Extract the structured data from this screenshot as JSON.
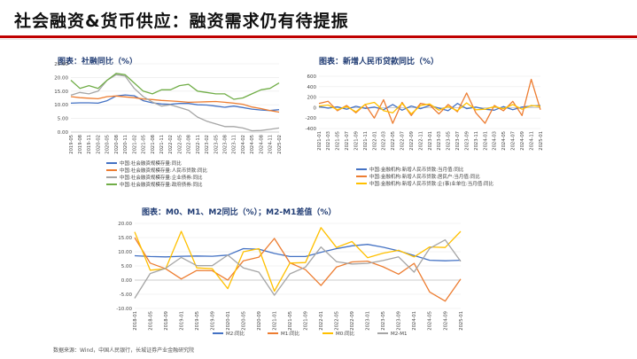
{
  "title": "社会融资&货币供应：融资需求仍有待提振",
  "source": "数据来源：Wind，中国人民银行，长城证券产业金融研究院",
  "colors": {
    "blue": "#4472c4",
    "orange": "#ed7d31",
    "gray": "#a5a5a5",
    "yellow": "#ffc000",
    "green": "#70ad47",
    "red": "#c00000"
  },
  "chart_data": [
    {
      "type": "line",
      "title": "图表：社融同比（%）",
      "ylim": [
        0,
        25
      ],
      "yticks": [
        "0.00",
        "5.00",
        "10.00",
        "15.00",
        "20.00",
        "25.00"
      ],
      "x_tick_labels": [
        "2019-05",
        "2019-08",
        "2019-11",
        "2020-02",
        "2020-05",
        "2020-08",
        "2020-11",
        "2021-02",
        "2021-05",
        "2021-08",
        "2021-11",
        "2022-02",
        "2022-05",
        "2022-08",
        "2022-11",
        "2023-02",
        "2023-05",
        "2023-08",
        "2023-11",
        "2024-02",
        "2024-05",
        "2024-08",
        "2024-11",
        "2025-02"
      ],
      "series": [
        {
          "name": "中国:社会融资规模存量:同比",
          "color": "#4472c4",
          "values": [
            10.6,
            10.7,
            10.7,
            10.6,
            11.5,
            13.2,
            13.6,
            13.3,
            11.5,
            10.7,
            10.3,
            10.2,
            10.5,
            10.5,
            10.0,
            9.9,
            9.5,
            9.1,
            9.5,
            9.0,
            8.4,
            8.1,
            7.9,
            8.2
          ]
        },
        {
          "name": "中国:社会融资规模存量:人民币贷款:同比",
          "color": "#ed7d31",
          "values": [
            13.0,
            12.6,
            12.4,
            12.2,
            13.0,
            13.2,
            12.9,
            12.6,
            12.1,
            11.9,
            11.6,
            11.4,
            11.2,
            10.9,
            11.0,
            11.1,
            11.2,
            10.9,
            10.6,
            10.2,
            9.2,
            8.6,
            7.9,
            7.3
          ]
        },
        {
          "name": "中国:社会融资规模存量:企业债券:同比",
          "color": "#a5a5a5",
          "values": [
            13.5,
            14.5,
            14.0,
            15.0,
            19.0,
            21.0,
            20.5,
            16.0,
            13.0,
            11.0,
            9.5,
            10.0,
            9.0,
            8.0,
            5.5,
            4.0,
            3.0,
            2.0,
            2.0,
            1.5,
            0.5,
            0.6,
            1.0,
            1.5
          ]
        },
        {
          "name": "中国:社会融资规模存量:政府债券:同比",
          "color": "#70ad47",
          "values": [
            19.0,
            16.0,
            17.0,
            16.0,
            19.0,
            21.5,
            21.0,
            18.0,
            15.0,
            14.0,
            15.5,
            15.5,
            17.0,
            17.5,
            15.0,
            14.5,
            14.0,
            14.0,
            12.0,
            12.5,
            14.0,
            15.5,
            16.0,
            18.0
          ]
        }
      ]
    },
    {
      "type": "line",
      "title": "图表：新增人民币贷款同比（%）",
      "ylim": [
        -400,
        600
      ],
      "yticks": [
        "-400",
        "-200",
        "0",
        "200",
        "400",
        "600"
      ],
      "x_tick_labels": [
        "2021-01",
        "2021-03",
        "2021-05",
        "2021-07",
        "2021-09",
        "2021-11",
        "2022-01",
        "2022-03",
        "2022-05",
        "2022-07",
        "2022-09",
        "2022-11",
        "2023-01",
        "2023-03",
        "2023-05",
        "2023-07",
        "2023-09",
        "2023-11",
        "2024-01",
        "2024-03",
        "2024-05",
        "2024-07",
        "2024-09",
        "2024-11",
        "2025-01"
      ],
      "series": [
        {
          "name": "中国:金融机构:新增人民币贷款:当月值:同比",
          "color": "#4472c4",
          "values": [
            20,
            -10,
            15,
            -30,
            25,
            -15,
            10,
            -40,
            60,
            -50,
            30,
            -20,
            40,
            -10,
            -60,
            80,
            -20,
            10,
            -30,
            -50,
            20,
            -40,
            10,
            30,
            40
          ]
        },
        {
          "name": "中国:金融机构:新增人民币贷款:居民户:当月值:同比",
          "color": "#ed7d31",
          "values": [
            80,
            120,
            -60,
            40,
            -100,
            60,
            -200,
            150,
            -300,
            100,
            -150,
            80,
            50,
            -120,
            60,
            -80,
            280,
            -100,
            -300,
            40,
            -60,
            120,
            -150,
            540,
            -40
          ]
        },
        {
          "name": "中国:金融机构:新增人民币贷款:企(事)业单位:当月值:同比",
          "color": "#ffc000",
          "values": [
            30,
            50,
            -40,
            20,
            -80,
            60,
            100,
            -60,
            -100,
            80,
            -120,
            40,
            70,
            -50,
            20,
            -60,
            90,
            -40,
            -30,
            20,
            -20,
            60,
            -30,
            40,
            20
          ]
        }
      ]
    },
    {
      "type": "line",
      "title": "图表：M0、M1、M2同比（%）；M2-M1差值（%）",
      "ylim": [
        -10,
        20
      ],
      "yticks": [
        "-10.00",
        "-5.00",
        "0.00",
        "5.00",
        "10.00",
        "15.00",
        "20.00"
      ],
      "x_tick_labels": [
        "2018-01",
        "2018-05",
        "2018-09",
        "2019-01",
        "2019-05",
        "2019-09",
        "2020-01",
        "2020-05",
        "2020-09",
        "2021-01",
        "2021-05",
        "2021-09",
        "2022-01",
        "2022-05",
        "2022-09",
        "2023-01",
        "2023-05",
        "2023-09",
        "2024-01",
        "2024-05",
        "2024-09",
        "2025-01"
      ],
      "series": [
        {
          "name": "M2:同比",
          "color": "#4472c4",
          "values": [
            8.6,
            8.3,
            8.2,
            8.4,
            8.5,
            8.4,
            8.8,
            11.1,
            10.9,
            9.4,
            8.3,
            8.3,
            9.8,
            11.1,
            12.1,
            12.6,
            11.6,
            10.3,
            8.7,
            7.0,
            6.8,
            7.0
          ]
        },
        {
          "name": "M1:同比",
          "color": "#ed7d31",
          "values": [
            15.0,
            6.0,
            4.0,
            0.4,
            3.4,
            3.3,
            0.0,
            6.8,
            8.1,
            14.7,
            6.1,
            3.7,
            -1.9,
            4.6,
            6.4,
            6.7,
            4.7,
            2.1,
            5.9,
            -4.2,
            -7.4,
            0.4
          ]
        },
        {
          "name": "M0:同比",
          "color": "#ffc000",
          "values": [
            17.0,
            3.5,
            4.0,
            17.2,
            4.3,
            4.0,
            -3.0,
            10.0,
            11.1,
            -3.9,
            6.0,
            6.2,
            18.5,
            11.5,
            13.6,
            7.9,
            9.5,
            10.5,
            8.2,
            11.7,
            11.5,
            17.2
          ]
        },
        {
          "name": "M2-M1",
          "color": "#a5a5a5",
          "values": [
            -6.4,
            2.3,
            4.2,
            8.0,
            5.1,
            5.1,
            8.8,
            4.3,
            2.8,
            -5.3,
            2.2,
            4.6,
            11.7,
            6.5,
            5.7,
            5.9,
            6.9,
            8.2,
            2.8,
            11.2,
            14.2,
            6.6
          ]
        }
      ]
    }
  ]
}
